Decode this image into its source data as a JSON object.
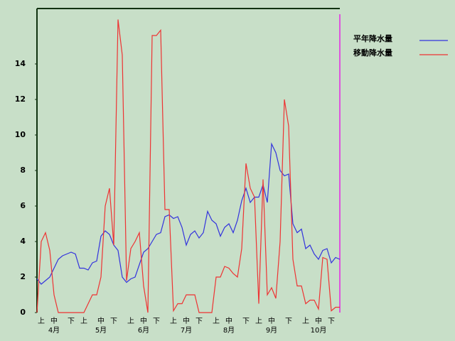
{
  "chart_data": {
    "type": "line",
    "categories": [
      null,
      "上",
      null,
      null,
      "中",
      null,
      null,
      null,
      "下",
      null,
      null,
      "上",
      null,
      null,
      null,
      "中",
      null,
      null,
      "下",
      null,
      null,
      null,
      "上",
      null,
      null,
      "中",
      null,
      null,
      "下",
      null,
      null,
      null,
      "上",
      null,
      null,
      "中",
      null,
      null,
      "下",
      null,
      null,
      null,
      "上",
      null,
      null,
      "中",
      null,
      null,
      null,
      "下",
      null,
      null,
      "上",
      null,
      null,
      "中",
      null,
      null,
      null,
      "下",
      null,
      null,
      null,
      "上",
      null,
      null,
      "中",
      null,
      null,
      "下",
      null,
      null
    ],
    "months": [
      null,
      null,
      null,
      null,
      "4月",
      null,
      null,
      null,
      null,
      null,
      null,
      null,
      null,
      null,
      null,
      "5月",
      null,
      null,
      null,
      null,
      null,
      null,
      null,
      null,
      null,
      "6月",
      null,
      null,
      null,
      null,
      null,
      null,
      null,
      null,
      null,
      "7月",
      null,
      null,
      null,
      null,
      null,
      null,
      null,
      null,
      null,
      "8月",
      null,
      null,
      null,
      null,
      null,
      null,
      null,
      null,
      null,
      "9月",
      null,
      null,
      null,
      null,
      null,
      null,
      null,
      null,
      null,
      null,
      "10月",
      null,
      null,
      null,
      null,
      null
    ],
    "series": [
      {
        "name": "平年降水量",
        "color": "#3333dd",
        "values": [
          1.9,
          1.6,
          1.8,
          2.0,
          2.5,
          3.0,
          3.2,
          3.3,
          3.4,
          3.3,
          2.5,
          2.5,
          2.4,
          2.8,
          2.9,
          4.3,
          4.6,
          4.4,
          3.8,
          3.5,
          2.0,
          1.7,
          1.9,
          2.0,
          2.7,
          3.4,
          3.6,
          4.0,
          4.4,
          4.5,
          5.4,
          5.5,
          5.3,
          5.4,
          4.8,
          3.8,
          4.4,
          4.6,
          4.2,
          4.5,
          5.7,
          5.2,
          5.0,
          4.3,
          4.8,
          5.0,
          4.5,
          5.2,
          6.3,
          7.0,
          6.2,
          6.5,
          6.5,
          7.2,
          6.2,
          9.5,
          9.0,
          8.0,
          7.7,
          7.8,
          5.0,
          4.5,
          4.7,
          3.6,
          3.8,
          3.3,
          3.0,
          3.5,
          3.6,
          2.8,
          3.1,
          3.0
        ]
      },
      {
        "name": "移動降水量",
        "color": "#ee3333",
        "values": [
          0,
          4.0,
          4.5,
          3.5,
          1.0,
          0,
          0,
          0,
          0,
          0,
          0,
          0,
          0.5,
          1.0,
          1.0,
          2.0,
          6.0,
          7.0,
          3.8,
          16.5,
          14.5,
          1.8,
          3.6,
          4.0,
          4.5,
          1.5,
          0,
          15.6,
          15.6,
          15.9,
          5.8,
          5.8,
          0.1,
          0.5,
          0.5,
          1.0,
          1.0,
          1.0,
          0,
          0,
          0,
          0,
          2.0,
          2.0,
          2.6,
          2.5,
          2.2,
          2.0,
          3.6,
          8.4,
          7.0,
          6.5,
          0.5,
          7.5,
          1.0,
          1.4,
          0.8,
          4.0,
          12.0,
          10.5,
          3.0,
          1.5,
          1.5,
          0.5,
          0.7,
          0.7,
          0.2,
          3.1,
          3.0,
          0.1,
          0.3,
          0.3
        ]
      }
    ],
    "ylim": [
      0,
      17.12
    ],
    "yticks": [
      0,
      2,
      4,
      6,
      8,
      10,
      12,
      14
    ]
  }
}
